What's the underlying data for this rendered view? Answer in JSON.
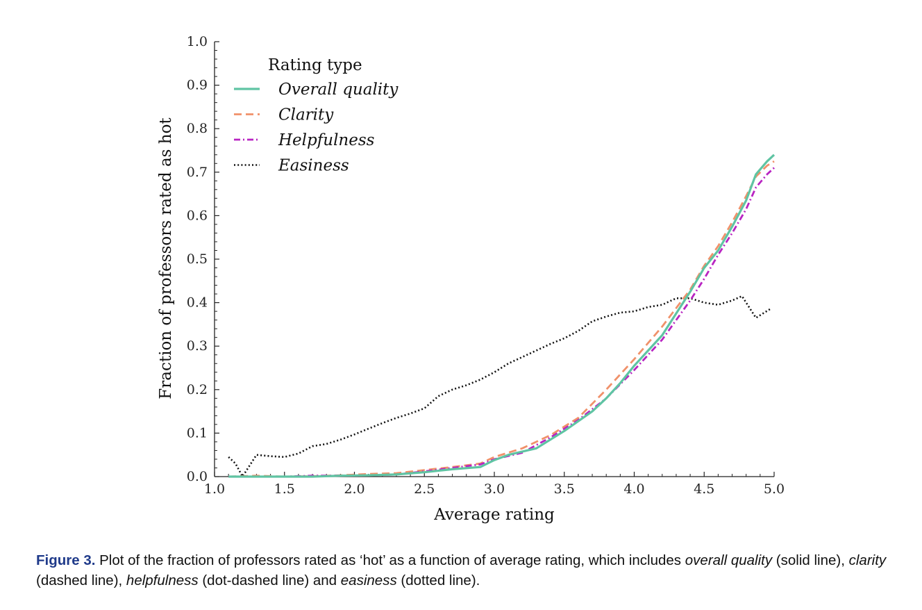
{
  "chart_data": {
    "type": "line",
    "xlabel": "Average rating",
    "ylabel": "Fraction of professors rated as hot",
    "xlim": [
      1.0,
      5.0
    ],
    "ylim": [
      0.0,
      1.0
    ],
    "xticks": [
      "1.0",
      "1.5",
      "2.0",
      "2.5",
      "3.0",
      "3.5",
      "4.0",
      "4.5",
      "5.0"
    ],
    "yticks": [
      "0.0",
      "0.1",
      "0.2",
      "0.3",
      "0.4",
      "0.5",
      "0.6",
      "0.7",
      "0.8",
      "0.9",
      "1.0"
    ],
    "grid": false,
    "legend": {
      "title": "Rating type",
      "position": "top-left"
    },
    "series": [
      {
        "name": "Overall quality",
        "style": "solid",
        "color": "#5fc4a3",
        "x": [
          1.1,
          1.3,
          1.5,
          1.7,
          1.9,
          2.1,
          2.3,
          2.5,
          2.7,
          2.9,
          3.0,
          3.1,
          3.3,
          3.5,
          3.7,
          3.8,
          3.9,
          4.0,
          4.1,
          4.2,
          4.3,
          4.4,
          4.5,
          4.6,
          4.7,
          4.8,
          4.87,
          4.95,
          5.0
        ],
        "y": [
          0.0,
          0.0,
          0.0,
          0.0,
          0.002,
          0.003,
          0.005,
          0.01,
          0.017,
          0.022,
          0.038,
          0.05,
          0.065,
          0.105,
          0.15,
          0.18,
          0.215,
          0.255,
          0.29,
          0.325,
          0.375,
          0.425,
          0.48,
          0.52,
          0.575,
          0.635,
          0.695,
          0.725,
          0.74
        ]
      },
      {
        "name": "Clarity",
        "style": "dashed",
        "color": "#f0916a",
        "x": [
          1.1,
          1.3,
          1.5,
          1.7,
          1.9,
          2.1,
          2.3,
          2.5,
          2.7,
          2.9,
          3.0,
          3.2,
          3.4,
          3.6,
          3.8,
          4.0,
          4.2,
          4.4,
          4.5,
          4.6,
          4.7,
          4.8,
          4.87,
          4.95,
          5.0
        ],
        "y": [
          0.0,
          0.002,
          0.0,
          0.001,
          0.003,
          0.006,
          0.008,
          0.015,
          0.022,
          0.03,
          0.045,
          0.065,
          0.095,
          0.135,
          0.2,
          0.27,
          0.345,
          0.43,
          0.485,
          0.53,
          0.585,
          0.645,
          0.69,
          0.715,
          0.725
        ]
      },
      {
        "name": "Helpfulness",
        "style": "dot-dashed",
        "color": "#b824c2",
        "x": [
          1.1,
          1.3,
          1.5,
          1.7,
          1.9,
          2.1,
          2.3,
          2.5,
          2.7,
          2.9,
          3.0,
          3.2,
          3.4,
          3.6,
          3.8,
          4.0,
          4.2,
          4.4,
          4.5,
          4.6,
          4.7,
          4.8,
          4.87,
          4.95,
          5.0
        ],
        "y": [
          0.0,
          0.0,
          0.0,
          0.002,
          0.002,
          0.003,
          0.005,
          0.012,
          0.02,
          0.028,
          0.04,
          0.055,
          0.09,
          0.13,
          0.18,
          0.245,
          0.315,
          0.405,
          0.455,
          0.51,
          0.56,
          0.615,
          0.665,
          0.695,
          0.71
        ]
      },
      {
        "name": "Easiness",
        "style": "dotted",
        "color": "#111111",
        "x": [
          1.1,
          1.15,
          1.2,
          1.3,
          1.4,
          1.5,
          1.6,
          1.7,
          1.8,
          1.9,
          2.0,
          2.1,
          2.2,
          2.3,
          2.4,
          2.5,
          2.6,
          2.7,
          2.8,
          2.9,
          3.0,
          3.1,
          3.2,
          3.3,
          3.4,
          3.5,
          3.6,
          3.7,
          3.8,
          3.9,
          4.0,
          4.1,
          4.2,
          4.3,
          4.4,
          4.5,
          4.6,
          4.7,
          4.77,
          4.87,
          4.97
        ],
        "y": [
          0.045,
          0.03,
          0.0,
          0.05,
          0.047,
          0.045,
          0.053,
          0.07,
          0.075,
          0.085,
          0.097,
          0.11,
          0.123,
          0.135,
          0.145,
          0.157,
          0.185,
          0.2,
          0.21,
          0.223,
          0.24,
          0.26,
          0.275,
          0.29,
          0.305,
          0.318,
          0.335,
          0.357,
          0.368,
          0.377,
          0.38,
          0.39,
          0.395,
          0.41,
          0.41,
          0.4,
          0.395,
          0.405,
          0.415,
          0.365,
          0.385
        ]
      }
    ]
  },
  "caption": {
    "label": "Figure 3.",
    "t1": " Plot of the fraction of professors rated as ‘hot’ as a function of average rating, which includes ",
    "e1": "overall quality",
    "t2": " (solid line), ",
    "e2": "clarity",
    "t3": " (dashed line), ",
    "e3": "helpfulness",
    "t4": " (dot-dashed line) and ",
    "e4": "easiness",
    "t5": " (dotted line)."
  }
}
